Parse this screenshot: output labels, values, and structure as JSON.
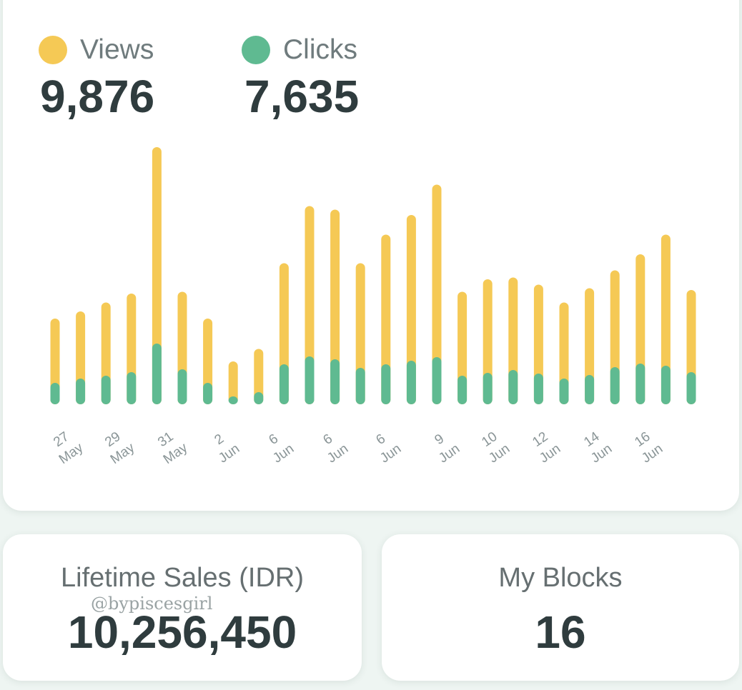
{
  "legend": {
    "views_label": "Views",
    "clicks_label": "Clicks",
    "views_total": "9,876",
    "clicks_total": "7,635"
  },
  "colors": {
    "views": "#f5c955",
    "clicks": "#5fba91",
    "background": "#eef5f2",
    "card": "#ffffff"
  },
  "chart_data": {
    "type": "bar",
    "stacked": true,
    "series": [
      {
        "name": "Views",
        "values": [
          240,
          260,
          285,
          310,
          720,
          315,
          240,
          120,
          155,
          395,
          555,
          545,
          395,
          475,
          530,
          615,
          315,
          350,
          355,
          335,
          285,
          325,
          375,
          420,
          475,
          320
        ]
      },
      {
        "name": "Clicks",
        "values": [
          60,
          72,
          80,
          90,
          170,
          98,
          60,
          22,
          34,
          112,
          134,
          126,
          102,
          112,
          122,
          132,
          80,
          88,
          96,
          86,
          72,
          82,
          104,
          114,
          108,
          90
        ]
      }
    ],
    "tick_labels": [
      [
        "27",
        "May"
      ],
      [
        "29",
        "May"
      ],
      [
        "31",
        "May"
      ],
      [
        "2",
        "Jun"
      ],
      [
        "6",
        "Jun"
      ],
      [
        "6",
        "Jun"
      ],
      [
        "6",
        "Jun"
      ],
      [
        "9",
        "Jun"
      ],
      [
        "10",
        "Jun"
      ],
      [
        "12",
        "Jun"
      ],
      [
        "14",
        "Jun"
      ],
      [
        "16",
        "Jun"
      ]
    ],
    "grid": false,
    "legend_position": "top-left"
  },
  "stats": {
    "lifetime_sales_label": "Lifetime Sales (IDR)",
    "lifetime_sales_value": "10,256,450",
    "blocks_label": "My Blocks",
    "blocks_value": "16"
  },
  "watermark": "@bypiscesgirl"
}
